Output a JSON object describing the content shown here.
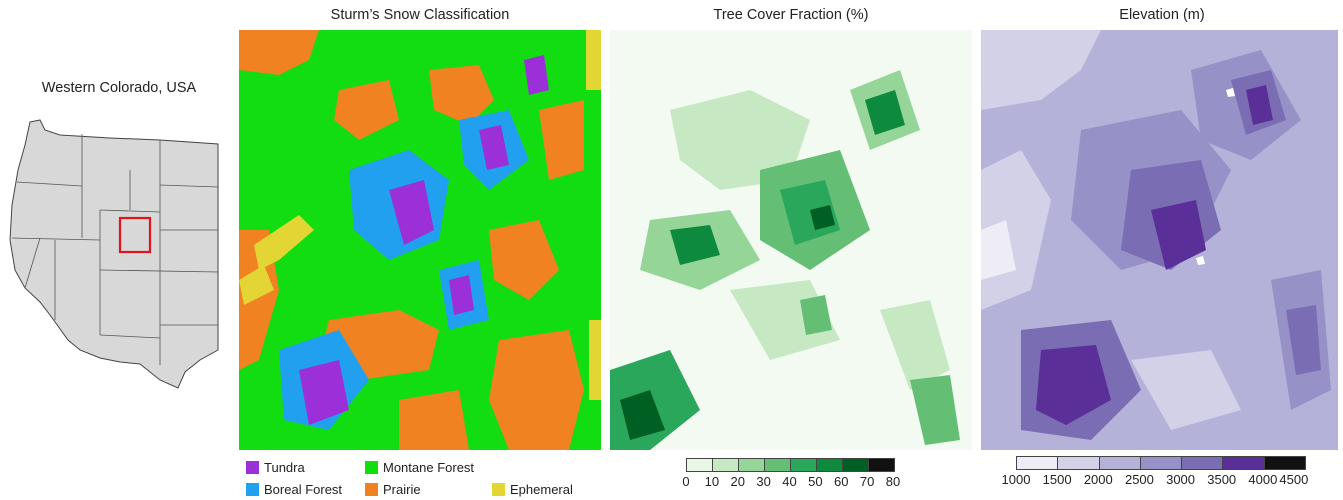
{
  "inset": {
    "title": "Western Colorado, USA",
    "highlight_color": "#e0141e"
  },
  "panels": [
    {
      "title": "Sturm’s Snow Classification",
      "legend": [
        {
          "label": "Tundra",
          "color": "#9b30d9"
        },
        {
          "label": "Montane Forest",
          "color": "#11dd11"
        },
        {
          "label": "Boreal Forest",
          "color": "#21a0f0"
        },
        {
          "label": "Prairie",
          "color": "#f08222"
        },
        {
          "label": "Ephemeral",
          "color": "#e3d534"
        }
      ]
    },
    {
      "title": "Tree Cover Fraction (%)",
      "colorbar": {
        "ticks": [
          "0",
          "10",
          "20",
          "30",
          "40",
          "50",
          "60",
          "70",
          "80"
        ],
        "colors": [
          "#e8f6e6",
          "#c6e9c3",
          "#95d597",
          "#64bf74",
          "#2aa75a",
          "#0e8a3f",
          "#006024",
          "#111111"
        ]
      }
    },
    {
      "title": "Elevation (m)",
      "colorbar": {
        "ticks": [
          "1000",
          "1500",
          "2000",
          "2500",
          "3000",
          "3500",
          "4000",
          "4500"
        ],
        "colors": [
          "#eeedf6",
          "#d2d1e8",
          "#b4b2d8",
          "#9692c7",
          "#7a6db3",
          "#5a2f98",
          "#111111"
        ]
      }
    }
  ]
}
